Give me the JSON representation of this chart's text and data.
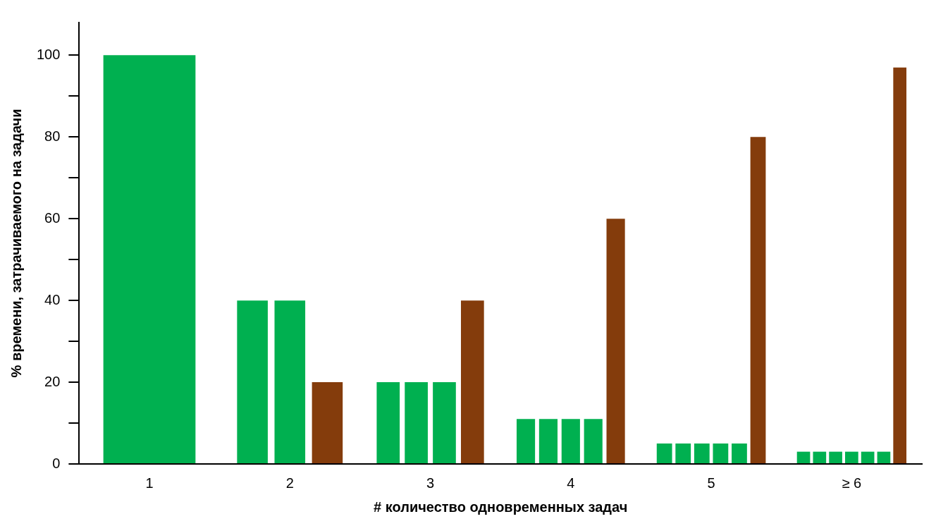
{
  "chart_data": {
    "type": "bar",
    "xlabel": "# количество одновременных задач",
    "ylabel": "% времени, затрачиваемого на задачи",
    "categories": [
      "1",
      "2",
      "3",
      "4",
      "5",
      "≥ 6"
    ],
    "series": [
      {
        "color": "#00b050",
        "values": [
          100,
          40,
          20,
          11,
          5,
          3
        ]
      },
      {
        "color": "#00b050",
        "values": [
          null,
          40,
          20,
          11,
          5,
          3
        ]
      },
      {
        "color": "#00b050",
        "values": [
          null,
          null,
          20,
          11,
          5,
          3
        ]
      },
      {
        "color": "#00b050",
        "values": [
          null,
          null,
          null,
          11,
          5,
          3
        ]
      },
      {
        "color": "#00b050",
        "values": [
          null,
          null,
          null,
          null,
          5,
          3
        ]
      },
      {
        "color": "#00b050",
        "values": [
          null,
          null,
          null,
          null,
          null,
          3
        ]
      },
      {
        "color": "#843c0c",
        "values": [
          null,
          20,
          40,
          60,
          80,
          97
        ]
      }
    ],
    "ylim": [
      0,
      108
    ],
    "yticks": [
      0,
      {
        "value": 10,
        "label": null
      },
      20,
      {
        "value": 30,
        "label": null
      },
      40,
      {
        "value": 50,
        "label": null
      },
      60,
      {
        "value": 70,
        "label": null
      },
      80,
      {
        "value": 90,
        "label": null
      },
      100
    ],
    "grid": false,
    "legend": false
  }
}
